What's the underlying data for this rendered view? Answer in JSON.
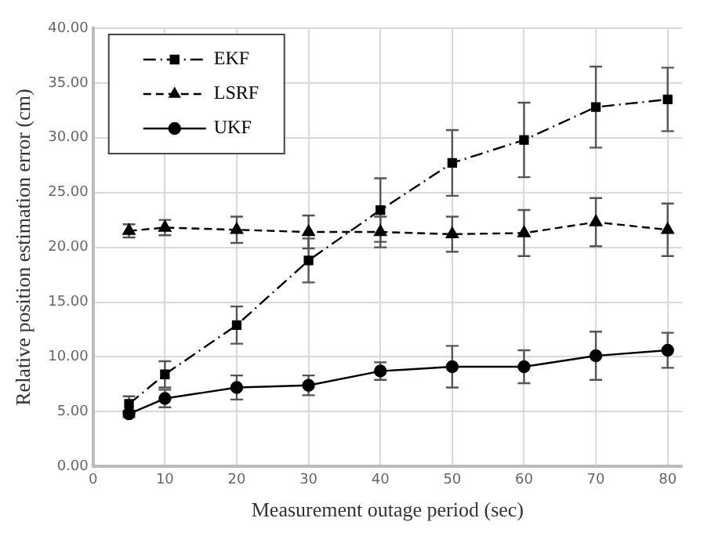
{
  "chart_data": {
    "type": "line",
    "xlabel": "Measurement outage period (sec)",
    "ylabel": "Relative position estimation error (cm)",
    "x": [
      5,
      10,
      20,
      30,
      40,
      50,
      60,
      70,
      80
    ],
    "xlim": [
      0,
      82
    ],
    "xticks": [
      0,
      10,
      20,
      30,
      40,
      50,
      60,
      70,
      80
    ],
    "ylim": [
      0,
      40
    ],
    "yticks": [
      {
        "value": 0,
        "label": "0.00"
      },
      {
        "value": 5,
        "label": "5.00"
      },
      {
        "value": 10,
        "label": "10.00"
      },
      {
        "value": 15,
        "label": "15.00"
      },
      {
        "value": 20,
        "label": "20.00"
      },
      {
        "value": 25,
        "label": "25.00"
      },
      {
        "value": 30,
        "label": "30.00"
      },
      {
        "value": 35,
        "label": "35.00"
      },
      {
        "value": 40,
        "label": "40.00"
      }
    ],
    "grid": true,
    "legend": "top left",
    "series": [
      {
        "name": "EKF",
        "color": "#000000",
        "marker": "square",
        "line_style": "dashdot",
        "values": [
          5.7,
          8.4,
          12.9,
          18.8,
          23.4,
          27.7,
          29.8,
          32.8,
          33.5
        ],
        "errors": [
          0.7,
          1.2,
          1.7,
          2.0,
          2.9,
          3.0,
          3.4,
          3.7,
          2.9
        ]
      },
      {
        "name": "LSRF",
        "color": "#000000",
        "marker": "triangle",
        "line_style": "dashed",
        "values": [
          21.5,
          21.8,
          21.6,
          21.4,
          21.4,
          21.2,
          21.3,
          22.3,
          21.6
        ],
        "errors": [
          0.6,
          0.7,
          1.2,
          1.5,
          1.4,
          1.6,
          2.1,
          2.2,
          2.4
        ]
      },
      {
        "name": "UKF",
        "color": "#000000",
        "marker": "circle",
        "line_style": "solid",
        "values": [
          4.8,
          6.2,
          7.2,
          7.4,
          8.7,
          9.1,
          9.1,
          10.1,
          10.6
        ],
        "errors": [
          0.3,
          0.8,
          1.1,
          0.9,
          0.8,
          1.9,
          1.5,
          2.2,
          1.6
        ]
      }
    ]
  }
}
